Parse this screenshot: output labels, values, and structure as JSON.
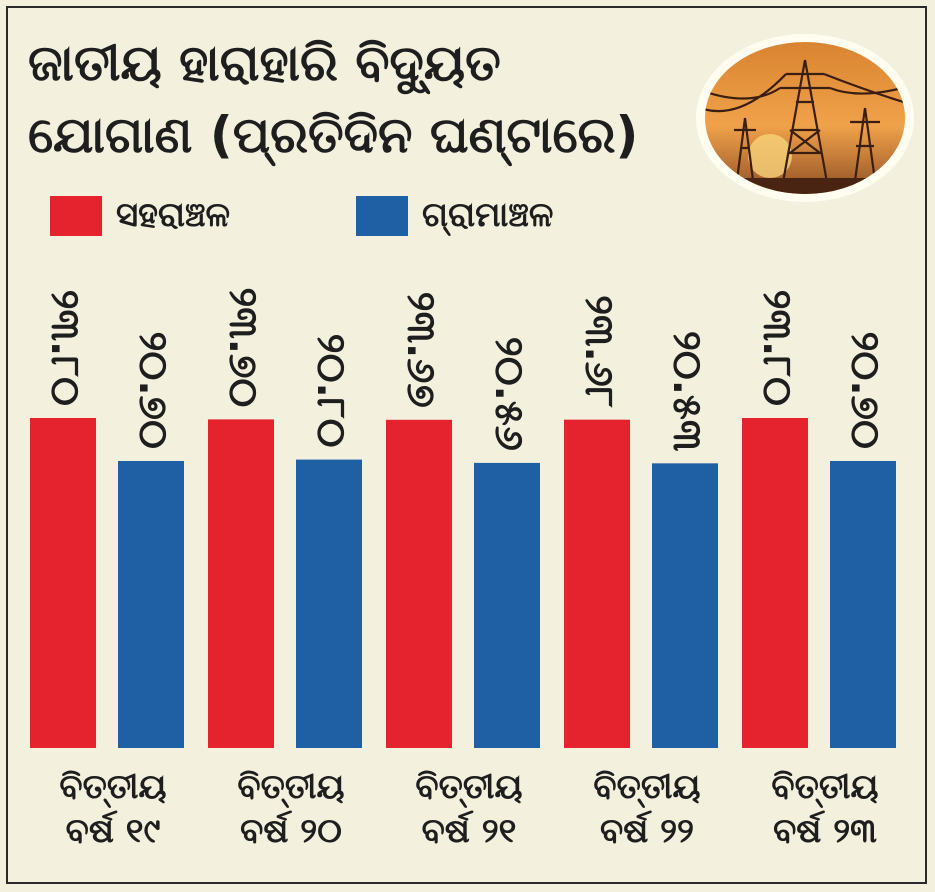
{
  "title_line1": "ଜାତୀୟ ହାରାହାରି ବିଦ୍ୟୁତ",
  "title_line2": "ଯୋଗାଣ (ପ୍ରତିଦିନ ଘଣ୍ଟାରେ)",
  "colors": {
    "urban": "#e5232e",
    "rural": "#1f5fa3",
    "background": "#f3f0de"
  },
  "chart_data": {
    "type": "bar",
    "categories": [
      "ବିତ୍ତୀୟ ବର୍ଷ ୧୯",
      "ବିତ୍ତୀୟ ବର୍ଷ ୨୦",
      "ବିତ୍ତୀୟ ବର୍ଷ ୨୧",
      "ବିତ୍ତୀୟ ବର୍ଷ ୨୨",
      "ବିତ୍ତୀୟ ବର୍ଷ ୨୩"
    ],
    "category_lines": [
      [
        "ବିତ୍ତୀୟ",
        "ବର୍ଷ ୧୯"
      ],
      [
        "ବିତ୍ତୀୟ",
        "ବର୍ଷ ୨୦"
      ],
      [
        "ବିତ୍ତୀୟ",
        "ବର୍ଷ ୨୧"
      ],
      [
        "ବିତ୍ତୀୟ",
        "ବର୍ଷ ୨୨"
      ],
      [
        "ବିତ୍ତୀୟ",
        "ବର୍ଷ ୨୩"
      ]
    ],
    "series": [
      {
        "name": "ସହରାଞ୍ଚଳ",
        "values": [
          23.8,
          23.7,
          23.67,
          23.68,
          23.8
        ],
        "labels": [
          "୨୩.୮୦",
          "୨୩.୭୦",
          "୨୩.୬୭",
          "୨୩.୬୮",
          "୨୩.୮୦"
        ]
      },
      {
        "name": "ଗ୍ରାମାଞ୍ଚଳ",
        "values": [
          20.7,
          20.8,
          20.56,
          20.53,
          20.7
        ],
        "labels": [
          "୨୦.୭୦",
          "୨୦.୮୦",
          "୨୦.୫୬",
          "୨୦.୫୩",
          "୨୦.୭୦"
        ]
      }
    ],
    "legend_position": "top-left",
    "grid": false
  }
}
